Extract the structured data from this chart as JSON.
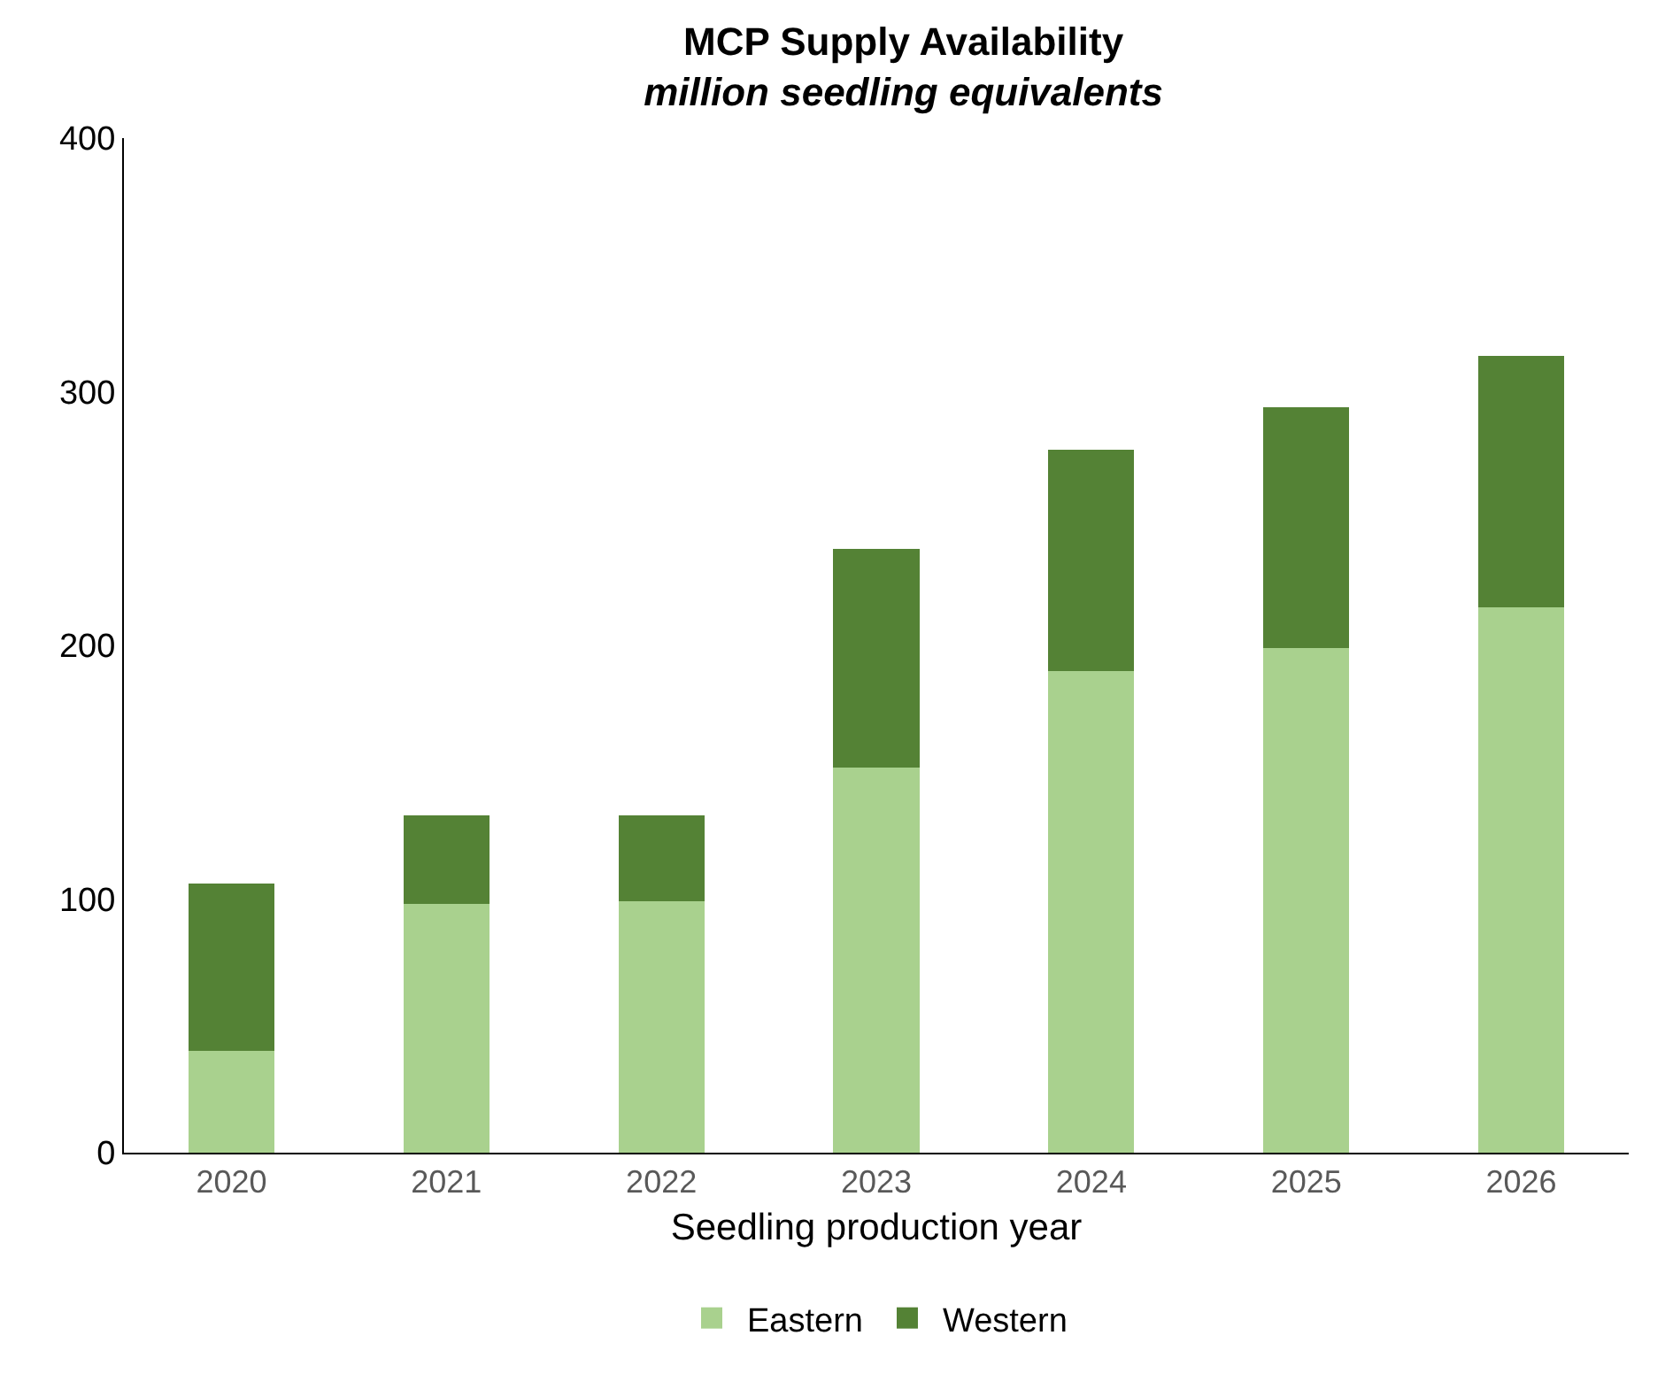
{
  "chart_data": {
    "type": "bar",
    "title": "MCP Supply Availability",
    "subtitle": "million seedling equivalents",
    "xlabel": "Seedling production year",
    "categories": [
      "2020",
      "2021",
      "2022",
      "2023",
      "2024",
      "2025",
      "2026"
    ],
    "series": [
      {
        "name": "Eastern",
        "color": "#a9d18e",
        "values": [
          40,
          98,
          99,
          152,
          190,
          199,
          215
        ]
      },
      {
        "name": "Western",
        "color": "#548235",
        "values": [
          66,
          35,
          34,
          86,
          87,
          95,
          99
        ]
      }
    ],
    "stacked": true,
    "ylim": [
      0,
      400
    ],
    "yticks": [
      0,
      100,
      200,
      300,
      400
    ],
    "grid": false,
    "legend": "bottom"
  }
}
